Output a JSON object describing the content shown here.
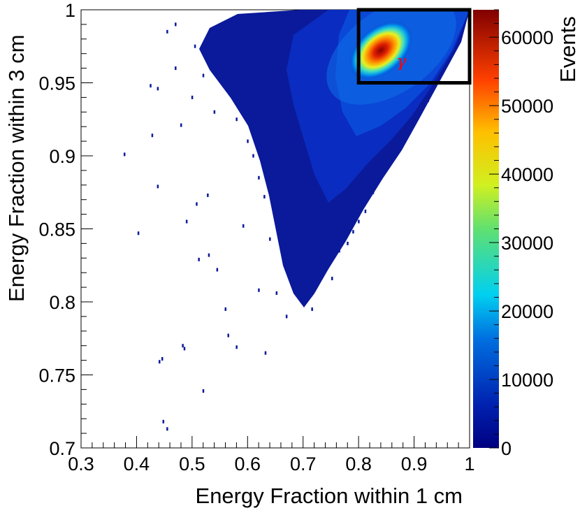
{
  "chart_data": {
    "type": "heatmap",
    "xlabel": "Energy Fraction within 1 cm",
    "ylabel": "Energy Fraction within 3 cm",
    "colorbar_label": "Events",
    "xlim": [
      0.3,
      1.0
    ],
    "ylim": [
      0.7,
      1.0
    ],
    "zlim": [
      0,
      64000
    ],
    "x_ticks": [
      "0.3",
      "0.4",
      "0.5",
      "0.6",
      "0.7",
      "0.8",
      "0.9",
      "1"
    ],
    "y_ticks": [
      "0.7",
      "0.75",
      "0.8",
      "0.85",
      "0.9",
      "0.95",
      "1"
    ],
    "z_ticks": [
      "0",
      "10000",
      "20000",
      "30000",
      "40000",
      "50000",
      "60000"
    ],
    "peak": {
      "x": 0.84,
      "y": 0.973,
      "value": 63000
    },
    "signal_region": {
      "x": [
        0.8,
        1.0
      ],
      "y": [
        0.95,
        1.0
      ],
      "label": "γ"
    },
    "scattered_points": [
      [
        0.378,
        0.901
      ],
      [
        0.403,
        0.847
      ],
      [
        0.425,
        0.948
      ],
      [
        0.428,
        0.914
      ],
      [
        0.438,
        0.879
      ],
      [
        0.438,
        0.946
      ],
      [
        0.441,
        0.759
      ],
      [
        0.446,
        0.761
      ],
      [
        0.448,
        0.718
      ],
      [
        0.455,
        0.713
      ],
      [
        0.48,
        0.921
      ],
      [
        0.483,
        0.77
      ],
      [
        0.486,
        0.768
      ],
      [
        0.49,
        0.855
      ],
      [
        0.508,
        0.867
      ],
      [
        0.512,
        0.829
      ],
      [
        0.52,
        0.739
      ],
      [
        0.528,
        0.873
      ],
      [
        0.53,
        0.832
      ],
      [
        0.545,
        0.822
      ],
      [
        0.56,
        0.795
      ],
      [
        0.565,
        0.777
      ],
      [
        0.58,
        0.769
      ],
      [
        0.592,
        0.852
      ],
      [
        0.62,
        0.808
      ],
      [
        0.632,
        0.765
      ],
      [
        0.64,
        0.843
      ],
      [
        0.652,
        0.806
      ],
      [
        0.67,
        0.79
      ],
      [
        0.683,
        0.811
      ],
      [
        0.702,
        0.802
      ],
      [
        0.716,
        0.795
      ],
      [
        0.735,
        0.818
      ],
      [
        0.752,
        0.816
      ],
      [
        0.47,
        0.96
      ],
      [
        0.5,
        0.94
      ],
      [
        0.52,
        0.955
      ],
      [
        0.54,
        0.93
      ],
      [
        0.56,
        0.95
      ],
      [
        0.58,
        0.925
      ],
      [
        0.6,
        0.91
      ],
      [
        0.61,
        0.9
      ],
      [
        0.62,
        0.885
      ],
      [
        0.63,
        0.872
      ],
      [
        0.65,
        0.86
      ],
      [
        0.66,
        0.845
      ],
      [
        0.69,
        0.835
      ],
      [
        0.705,
        0.826
      ],
      [
        0.725,
        0.832
      ],
      [
        0.742,
        0.828
      ],
      [
        0.765,
        0.835
      ],
      [
        0.78,
        0.84
      ],
      [
        0.455,
        0.985
      ],
      [
        0.47,
        0.99
      ],
      [
        0.505,
        0.975
      ],
      [
        0.53,
        0.968
      ],
      [
        0.545,
        0.982
      ],
      [
        0.575,
        0.988
      ],
      [
        0.595,
        0.975
      ],
      [
        0.612,
        0.962
      ],
      [
        0.598,
        0.944
      ],
      [
        0.615,
        0.932
      ],
      [
        0.645,
        0.896
      ],
      [
        0.655,
        0.88
      ],
      [
        0.675,
        0.872
      ],
      [
        0.69,
        0.858
      ],
      [
        0.705,
        0.849
      ],
      [
        0.72,
        0.843
      ],
      [
        0.79,
        0.848
      ],
      [
        0.8,
        0.855
      ],
      [
        0.812,
        0.862
      ],
      [
        0.826,
        0.875
      ],
      [
        0.84,
        0.888
      ],
      [
        0.855,
        0.897
      ],
      [
        0.87,
        0.905
      ],
      [
        0.885,
        0.913
      ],
      [
        0.898,
        0.921
      ],
      [
        0.912,
        0.93
      ],
      [
        0.925,
        0.938
      ],
      [
        0.935,
        0.946
      ]
    ]
  }
}
